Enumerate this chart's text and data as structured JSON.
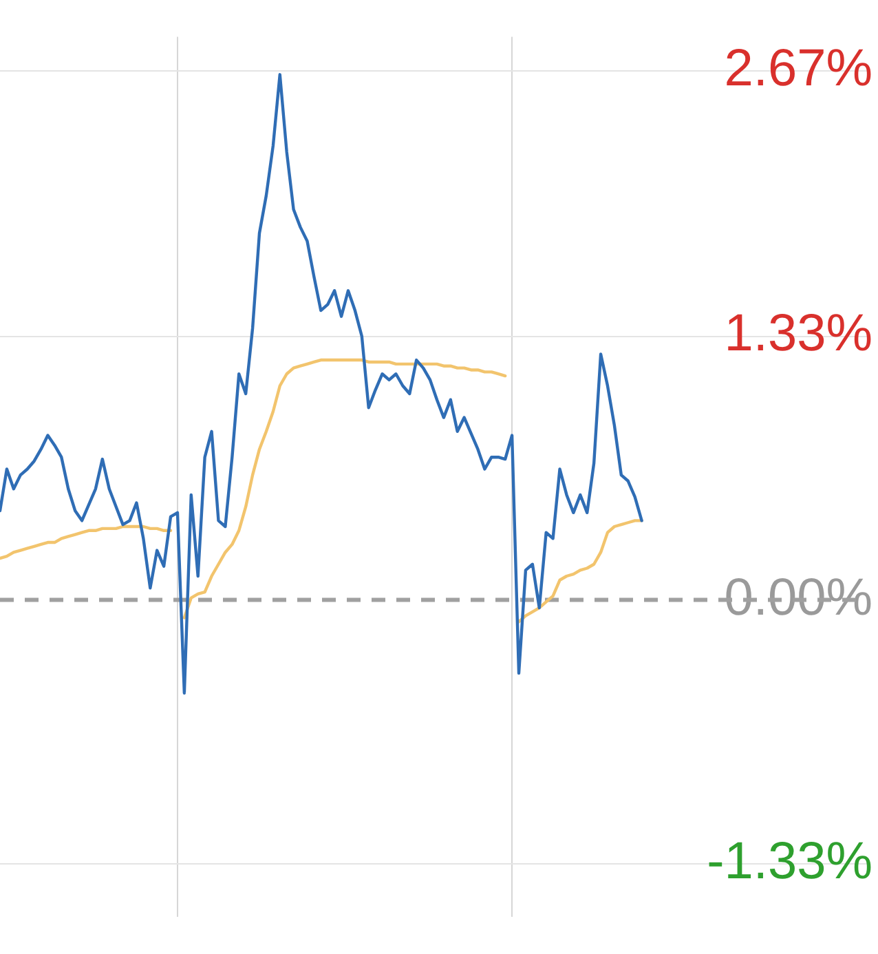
{
  "chart_data": {
    "type": "line",
    "categories": [
      null,
      null,
      null,
      null,
      null,
      null,
      null,
      null,
      null,
      null,
      null,
      null,
      null,
      null,
      null,
      null,
      null,
      null,
      null,
      null,
      null,
      null,
      null,
      null,
      null,
      null,
      null,
      null,
      null,
      null,
      null,
      null,
      null,
      null,
      null,
      null,
      null,
      null,
      null,
      null,
      null,
      null,
      null,
      null,
      null,
      null,
      null,
      null,
      null,
      null,
      null,
      null,
      null,
      null,
      null,
      null,
      null,
      null,
      null,
      null,
      null,
      null,
      null,
      null,
      null,
      null,
      null,
      null,
      null,
      null,
      null,
      null,
      null,
      null,
      null,
      null,
      null,
      null,
      null,
      null,
      null,
      null,
      null,
      null,
      null,
      null,
      null,
      null,
      null,
      null,
      null,
      null,
      null,
      null,
      null,
      null,
      null,
      null,
      null,
      null,
      null,
      null,
      null,
      null,
      null,
      null,
      null,
      null,
      null,
      null,
      null,
      null,
      null,
      null,
      null,
      null,
      null,
      null,
      null,
      null,
      null,
      null,
      null,
      null,
      null,
      null,
      null,
      null
    ],
    "ylim": [
      -1.6,
      2.84
    ],
    "yticks": [
      {
        "value": 2.67,
        "label": "2.67%"
      },
      {
        "value": 1.33,
        "label": "1.33%"
      },
      {
        "value": 0,
        "label": "0.00%"
      },
      {
        "value": -1.33,
        "label": "-1.33%"
      }
    ],
    "tick_labels": "y",
    "grid": true,
    "legend": false,
    "marker": "none",
    "line_style": "solid",
    "ref_lines": [
      {
        "axis": "y",
        "value": 0,
        "label": null,
        "color": "#a0a0a0",
        "line_style": "dashed"
      }
    ],
    "series": [
      {
        "color": "#2f6db5",
        "values": [
          0.45,
          0.66,
          0.56,
          0.63,
          0.66,
          0.7,
          0.76,
          0.83,
          0.78,
          0.72,
          0.56,
          0.45,
          0.4,
          0.48,
          0.56,
          0.71,
          0.56,
          0.47,
          0.38,
          0.4,
          0.49,
          0.31,
          0.06,
          0.25,
          0.17,
          0.42,
          0.44,
          -0.47,
          0.53,
          0.12,
          0.72,
          0.85,
          0.4,
          0.37,
          0.72,
          1.14,
          1.04,
          1.37,
          1.85,
          2.04,
          2.29,
          2.65,
          2.26,
          1.97,
          1.88,
          1.81,
          1.63,
          1.46,
          1.49,
          1.56,
          1.43,
          1.56,
          1.46,
          1.33,
          0.97,
          1.06,
          1.14,
          1.11,
          1.14,
          1.08,
          1.04,
          1.21,
          1.17,
          1.11,
          1.01,
          0.92,
          1.01,
          0.85,
          0.92,
          0.84,
          0.76,
          0.66,
          0.72,
          0.72,
          0.71,
          0.83,
          -0.37,
          0.15,
          0.18,
          -0.04,
          0.34,
          0.31,
          0.66,
          0.53,
          0.44,
          0.53,
          0.44,
          0.69,
          1.24,
          1.08,
          0.88,
          0.63,
          0.6,
          0.52,
          0.4,
          null,
          null,
          null,
          null,
          null,
          null,
          null,
          null,
          null,
          null,
          null,
          null,
          null,
          null,
          null,
          null,
          null,
          null,
          null,
          null,
          null,
          null,
          null,
          null,
          null,
          null,
          null,
          null,
          null,
          null,
          null,
          null,
          null
        ]
      },
      {
        "color": "#f2c46d",
        "values": [
          0.21,
          0.22,
          0.24,
          0.25,
          0.26,
          0.27,
          0.28,
          0.29,
          0.29,
          0.31,
          0.32,
          0.33,
          0.34,
          0.35,
          0.35,
          0.36,
          0.36,
          0.36,
          0.37,
          0.37,
          0.37,
          0.37,
          0.36,
          0.36,
          0.35,
          0.35,
          null,
          -0.09,
          0.01,
          0.03,
          0.04,
          0.12,
          0.18,
          0.24,
          0.28,
          0.35,
          0.47,
          0.63,
          0.76,
          0.85,
          0.95,
          1.08,
          1.14,
          1.17,
          1.18,
          1.19,
          1.2,
          1.21,
          1.21,
          1.21,
          1.21,
          1.21,
          1.21,
          1.21,
          1.2,
          1.2,
          1.2,
          1.2,
          1.19,
          1.19,
          1.19,
          1.19,
          1.19,
          1.19,
          1.19,
          1.18,
          1.18,
          1.17,
          1.17,
          1.16,
          1.16,
          1.15,
          1.15,
          1.14,
          1.13,
          null,
          -0.11,
          -0.08,
          -0.06,
          -0.04,
          -0.01,
          0.02,
          0.1,
          0.12,
          0.13,
          0.15,
          0.16,
          0.18,
          0.24,
          0.34,
          0.37,
          0.38,
          0.39,
          0.4,
          0.4,
          null,
          null,
          null,
          null,
          null,
          null,
          null,
          null,
          null,
          null,
          null,
          null,
          null,
          null,
          null,
          null,
          null,
          null,
          null,
          null,
          null,
          null,
          null,
          null,
          null,
          null,
          null,
          null,
          null,
          null,
          null,
          null,
          null
        ]
      }
    ]
  }
}
